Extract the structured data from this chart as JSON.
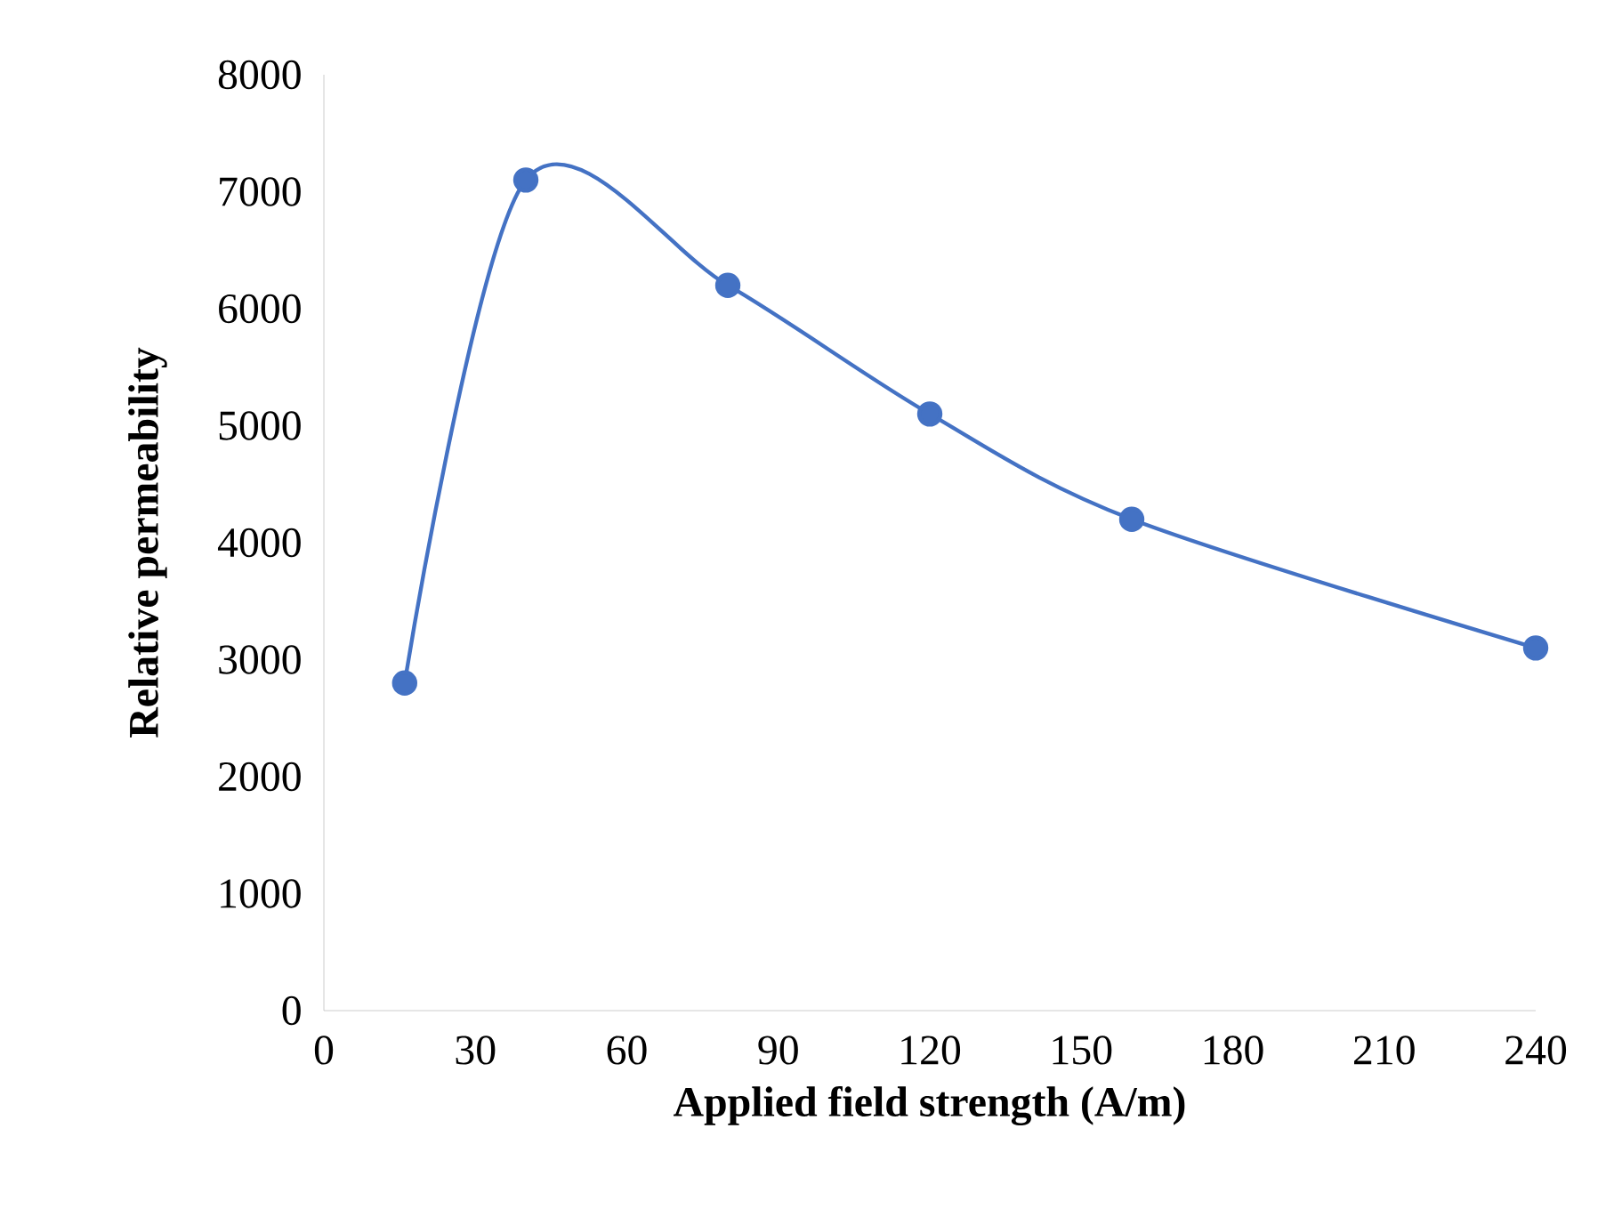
{
  "chart_data": {
    "type": "line",
    "xlabel": "Applied field strength (A/m)",
    "ylabel": "Relative permeability",
    "x": [
      16,
      40,
      80,
      120,
      160,
      240
    ],
    "series": [
      {
        "color": "#4472c4",
        "values": [
          2800,
          7100,
          6200,
          5100,
          4200,
          3100
        ]
      }
    ],
    "xlim": [
      0,
      240
    ],
    "ylim": [
      0,
      8000
    ],
    "xticks": [
      0,
      30,
      60,
      90,
      120,
      150,
      180,
      210,
      240
    ],
    "yticks": [
      0,
      1000,
      2000,
      3000,
      4000,
      5000,
      6000,
      7000,
      8000
    ],
    "marker": "circle",
    "line_style": "solid",
    "grid": false
  }
}
